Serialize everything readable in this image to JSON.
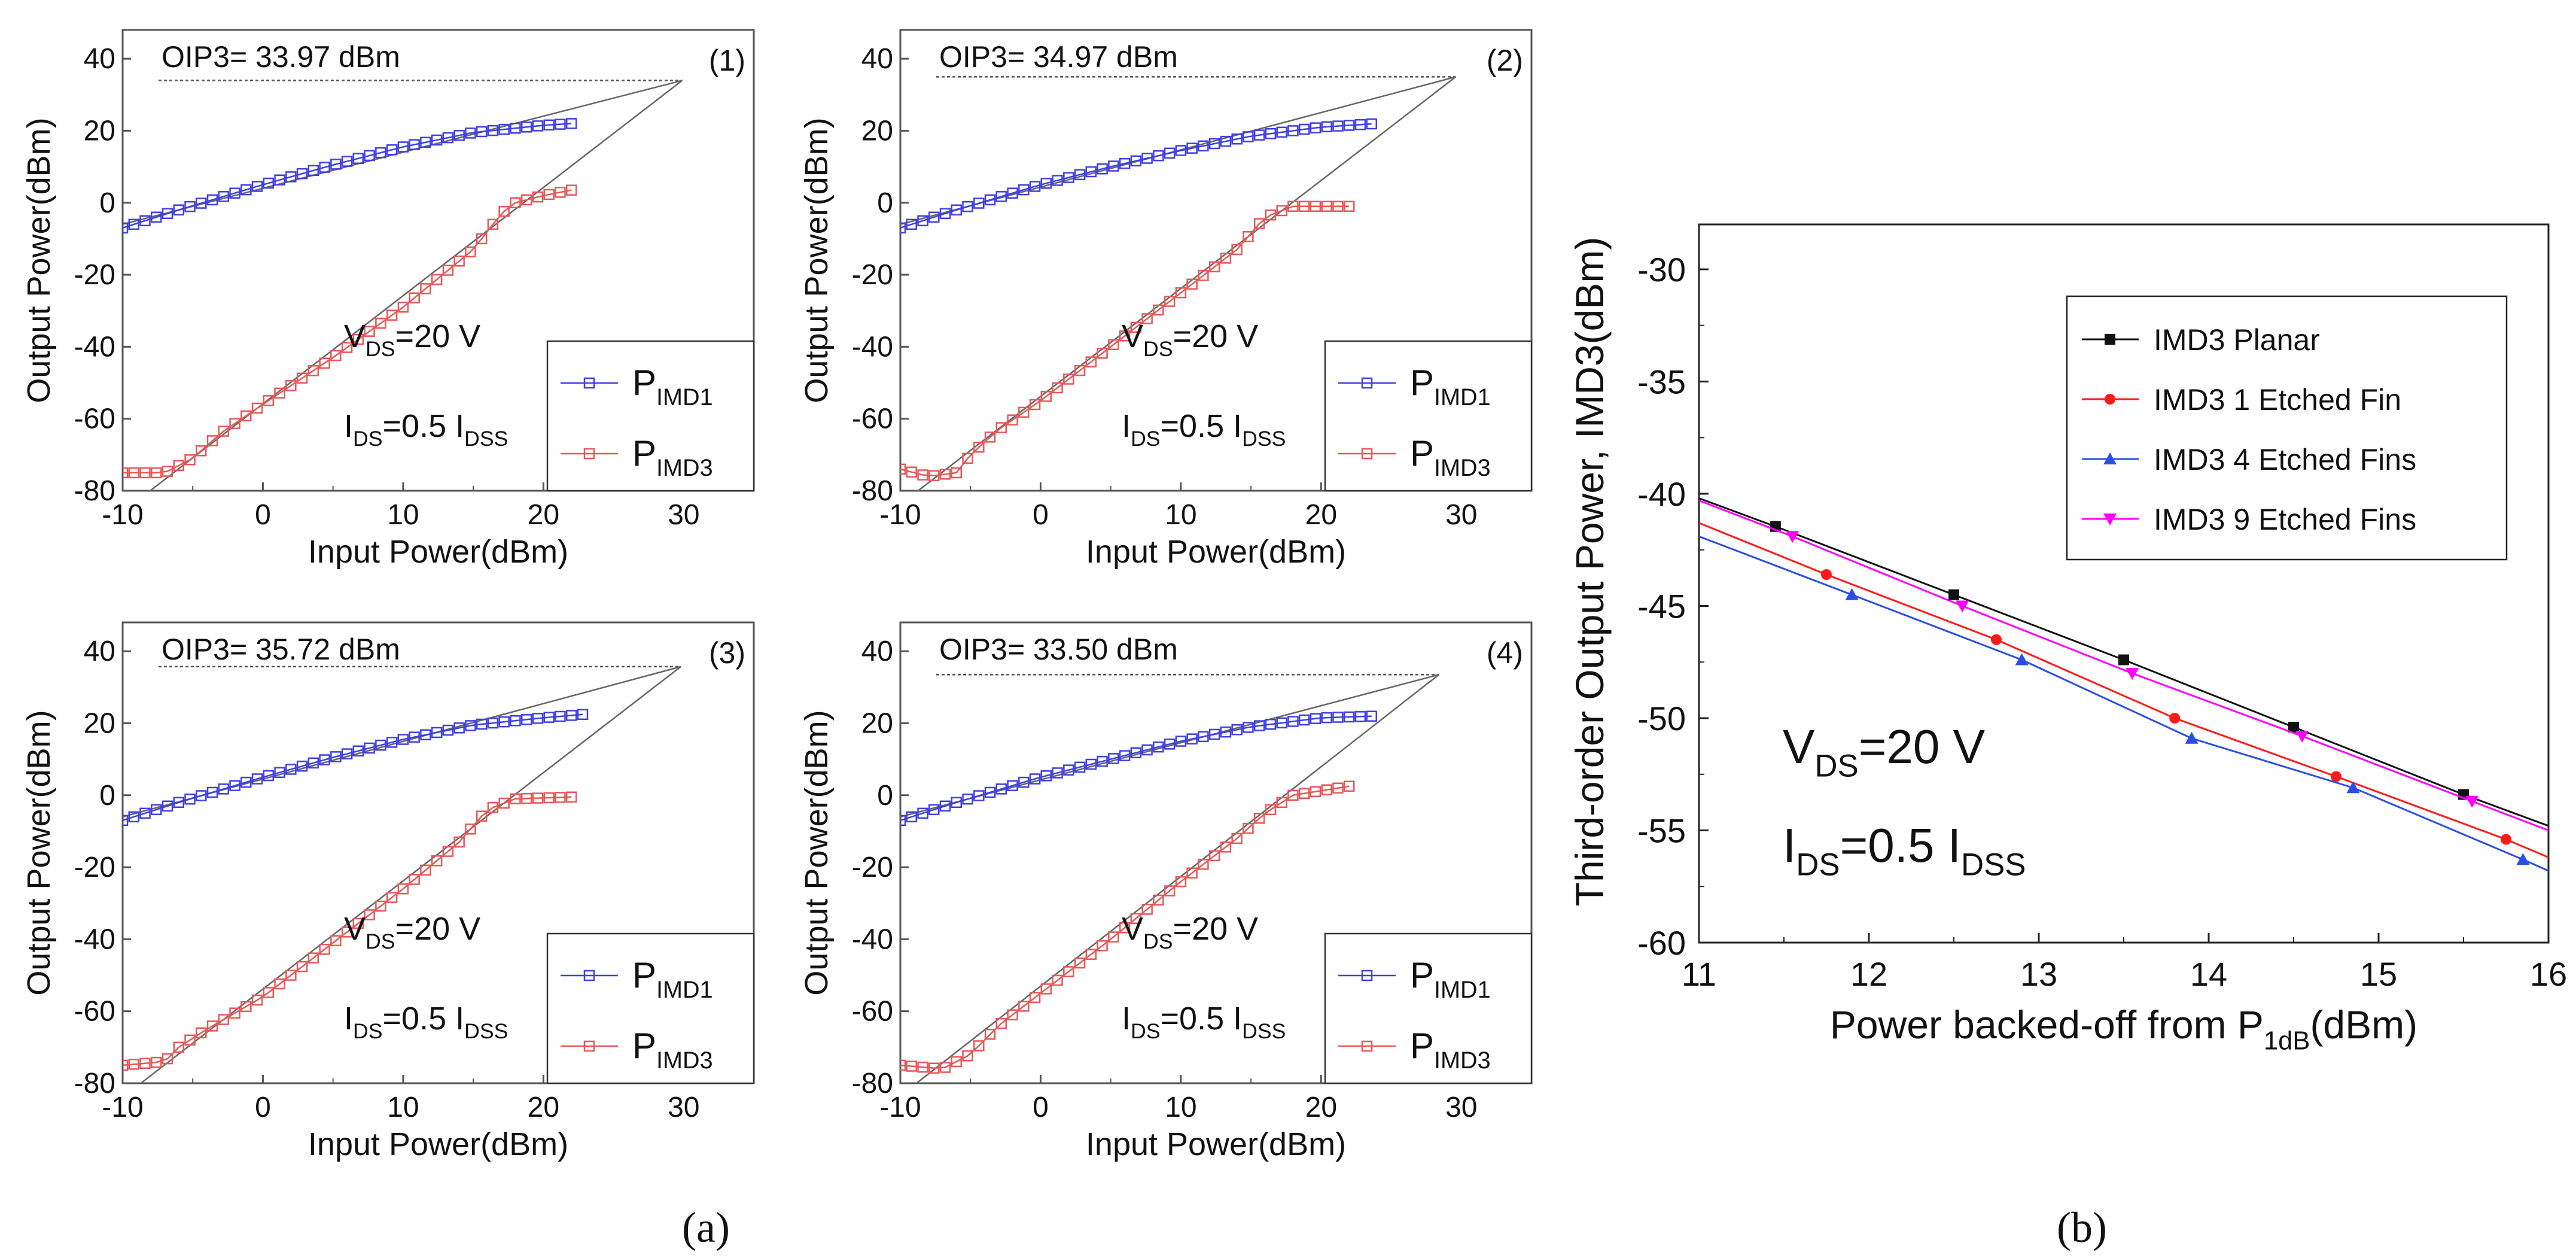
{
  "chart_data": [
    {
      "type": "line",
      "panel": "(1)",
      "oip3_label": "OIP3= 33.97 dBm",
      "oip3": 33.97,
      "xlabel": "Input Power(dBm)",
      "ylabel": "Output Power(dBm)",
      "xlim": [
        -10,
        35
      ],
      "ylim": [
        -80,
        48
      ],
      "xticks": [
        "-10",
        "0",
        "10",
        "20",
        "30"
      ],
      "yticks": [
        "-80",
        "-60",
        "-40",
        "-20",
        "0",
        "20",
        "40"
      ],
      "bias": {
        "vds": "V",
        "vds_sub": "DS",
        "vds_val": "=20 V",
        "ids": "I",
        "ids_sub": "DS",
        "ids_mid": "=0.5 I",
        "ids_sub2": "DSS"
      },
      "legend": [
        {
          "name": "P",
          "sub": "IMD1",
          "color": "#3f3fe6"
        },
        {
          "name": "P",
          "sub": "IMD3",
          "color": "#e85757"
        }
      ],
      "imd1": {
        "x0": -10,
        "x1": 22,
        "step": 0.8,
        "pts": [
          [
            -10,
            -7
          ],
          [
            -6,
            -2
          ],
          [
            0,
            5
          ],
          [
            5,
            10.5
          ],
          [
            10,
            15.5
          ],
          [
            15,
            19.5
          ],
          [
            20,
            21.5
          ],
          [
            22,
            22
          ]
        ]
      },
      "imd3": {
        "x0": -10,
        "x1": 22,
        "step": 0.8,
        "pts": [
          [
            -10,
            -75
          ],
          [
            -7,
            -75
          ],
          [
            -5,
            -71
          ],
          [
            -3,
            -64
          ],
          [
            0,
            -56
          ],
          [
            5,
            -43
          ],
          [
            10,
            -29
          ],
          [
            15,
            -13
          ],
          [
            17,
            -3
          ],
          [
            18,
            0
          ],
          [
            20,
            2
          ],
          [
            22,
            3.5
          ]
        ]
      },
      "fund_line": [
        [
          -10,
          -6
        ],
        [
          29.9,
          33.97
        ]
      ],
      "im3_line": [
        [
          -10,
          -85.9
        ],
        [
          29.9,
          33.97
        ]
      ]
    },
    {
      "type": "line",
      "panel": "(2)",
      "oip3_label": "OIP3= 34.97 dBm",
      "oip3": 34.97,
      "xlabel": "Input Power(dBm)",
      "ylabel": "Output Power(dBm)",
      "xlim": [
        -10,
        35
      ],
      "ylim": [
        -80,
        48
      ],
      "xticks": [
        "-10",
        "0",
        "10",
        "20",
        "30"
      ],
      "yticks": [
        "-80",
        "-60",
        "-40",
        "-20",
        "0",
        "20",
        "40"
      ],
      "bias": {
        "vds": "V",
        "vds_sub": "DS",
        "vds_val": "=20 V",
        "ids": "I",
        "ids_sub": "DS",
        "ids_mid": "=0.5 I",
        "ids_sub2": "DSS"
      },
      "legend": [
        {
          "name": "P",
          "sub": "IMD1",
          "color": "#3f3fe6"
        },
        {
          "name": "P",
          "sub": "IMD3",
          "color": "#e85757"
        }
      ],
      "imd1": {
        "x0": -10,
        "x1": 24,
        "step": 0.8,
        "pts": [
          [
            -10,
            -7
          ],
          [
            -6,
            -2
          ],
          [
            0,
            5
          ],
          [
            5,
            10
          ],
          [
            10,
            14.5
          ],
          [
            15,
            18.5
          ],
          [
            20,
            21
          ],
          [
            24,
            22
          ]
        ]
      },
      "imd3": {
        "x0": -10,
        "x1": 22,
        "step": 0.8,
        "pts": [
          [
            -10,
            -74
          ],
          [
            -8,
            -76
          ],
          [
            -6,
            -75
          ],
          [
            -5,
            -70
          ],
          [
            -3,
            -63
          ],
          [
            0,
            -55
          ],
          [
            5,
            -40
          ],
          [
            10,
            -25
          ],
          [
            14,
            -13
          ],
          [
            16,
            -4
          ],
          [
            18,
            -1
          ],
          [
            22,
            -1
          ]
        ]
      },
      "fund_line": [
        [
          -10,
          -6
        ],
        [
          29.6,
          34.97
        ]
      ],
      "im3_line": [
        [
          -10,
          -83.8
        ],
        [
          29.6,
          34.97
        ]
      ]
    },
    {
      "type": "line",
      "panel": "(3)",
      "oip3_label": "OIP3= 35.72 dBm",
      "oip3": 35.72,
      "xlabel": "Input Power(dBm)",
      "ylabel": "Output Power(dBm)",
      "xlim": [
        -10,
        35
      ],
      "ylim": [
        -80,
        48
      ],
      "xticks": [
        "-10",
        "0",
        "10",
        "20",
        "30"
      ],
      "yticks": [
        "-80",
        "-60",
        "-40",
        "-20",
        "0",
        "20",
        "40"
      ],
      "bias": {
        "vds": "V",
        "vds_sub": "DS",
        "vds_val": "=20 V",
        "ids": "I",
        "ids_sub": "DS",
        "ids_mid": "=0.5 I",
        "ids_sub2": "DSS"
      },
      "legend": [
        {
          "name": "P",
          "sub": "IMD1",
          "color": "#3f3fe6"
        },
        {
          "name": "P",
          "sub": "IMD3",
          "color": "#e85757"
        }
      ],
      "imd1": {
        "x0": -10,
        "x1": 23,
        "step": 0.8,
        "pts": [
          [
            -10,
            -7
          ],
          [
            -6,
            -2
          ],
          [
            0,
            5
          ],
          [
            5,
            10.5
          ],
          [
            10,
            15.5
          ],
          [
            15,
            19.5
          ],
          [
            20,
            21.5
          ],
          [
            23,
            22.5
          ]
        ]
      },
      "imd3": {
        "x0": -10,
        "x1": 22,
        "step": 0.8,
        "pts": [
          [
            -10,
            -75
          ],
          [
            -7,
            -74
          ],
          [
            -6,
            -70
          ],
          [
            -4,
            -65
          ],
          [
            0,
            -56
          ],
          [
            5,
            -41
          ],
          [
            10,
            -26
          ],
          [
            14,
            -13
          ],
          [
            16,
            -4
          ],
          [
            18,
            -1
          ],
          [
            22,
            -0.5
          ]
        ]
      },
      "fund_line": [
        [
          -10,
          -6
        ],
        [
          29.8,
          35.72
        ]
      ],
      "im3_line": [
        [
          -10,
          -83.9
        ],
        [
          29.8,
          35.72
        ]
      ]
    },
    {
      "type": "line",
      "panel": "(4)",
      "oip3_label": "OIP3= 33.50 dBm",
      "oip3": 33.5,
      "xlabel": "Input Power(dBm)",
      "ylabel": "Output Power(dBm)",
      "xlim": [
        -10,
        35
      ],
      "ylim": [
        -80,
        48
      ],
      "xticks": [
        "-10",
        "0",
        "10",
        "20",
        "30"
      ],
      "yticks": [
        "-80",
        "-60",
        "-40",
        "-20",
        "0",
        "20",
        "40"
      ],
      "bias": {
        "vds": "V",
        "vds_sub": "DS",
        "vds_val": "=20 V",
        "ids": "I",
        "ids_sub": "DS",
        "ids_mid": "=0.5 I",
        "ids_sub2": "DSS"
      },
      "legend": [
        {
          "name": "P",
          "sub": "IMD1",
          "color": "#3f3fe6"
        },
        {
          "name": "P",
          "sub": "IMD3",
          "color": "#e85757"
        }
      ],
      "imd1": {
        "x0": -10,
        "x1": 24,
        "step": 0.8,
        "pts": [
          [
            -10,
            -7
          ],
          [
            -6,
            -2
          ],
          [
            0,
            5
          ],
          [
            5,
            10
          ],
          [
            10,
            15
          ],
          [
            15,
            19
          ],
          [
            20,
            21.5
          ],
          [
            24,
            22
          ]
        ]
      },
      "imd3": {
        "x0": -10,
        "x1": 22,
        "step": 0.8,
        "pts": [
          [
            -10,
            -75
          ],
          [
            -7,
            -76
          ],
          [
            -5,
            -72
          ],
          [
            -3,
            -64
          ],
          [
            0,
            -55
          ],
          [
            5,
            -40
          ],
          [
            10,
            -24
          ],
          [
            14,
            -12
          ],
          [
            16,
            -5
          ],
          [
            18,
            0
          ],
          [
            22,
            2.5
          ]
        ]
      },
      "fund_line": [
        [
          -10,
          -6
        ],
        [
          28.4,
          33.5
        ]
      ],
      "im3_line": [
        [
          -10,
          -83.5
        ],
        [
          28.4,
          33.5
        ]
      ]
    },
    {
      "type": "line",
      "panel": "(b)",
      "xlabel": "Power backed-off from P",
      "xlabel_sub": "1dB",
      "xlabel_unit": "(dBm)",
      "ylabel": "Third-order Output Power, IMD3(dBm)",
      "xlim": [
        11,
        16
      ],
      "ylim": [
        -60,
        -28
      ],
      "xticks": [
        "11",
        "12",
        "13",
        "14",
        "15",
        "16"
      ],
      "yticks": [
        "-60",
        "-55",
        "-50",
        "-45",
        "-40",
        "-35",
        "-30"
      ],
      "bias": {
        "vds": "V",
        "vds_sub": "DS",
        "vds_val": "=20 V",
        "ids": "I",
        "ids_sub": "DS",
        "ids_mid": "=0.5 I",
        "ids_sub2": "DSS"
      },
      "series": [
        {
          "name": "IMD3 Planar",
          "color": "#111111",
          "marker": "square",
          "x": [
            11,
            11.5,
            12.5,
            13.5,
            14.5,
            15.5,
            16
          ],
          "y": [
            -40.2,
            -41.6,
            -44.5,
            -47.4,
            -50.4,
            -53.4,
            -54.8
          ],
          "mx": [
            11.45,
            12.5,
            13.5,
            14.5,
            15.5
          ]
        },
        {
          "name": "IMD3 1 Etched Fin",
          "color": "#ff1a1a",
          "marker": "circle",
          "x": [
            11,
            11.75,
            12.75,
            13.8,
            14.75,
            15.75,
            16
          ],
          "y": [
            -41.3,
            -43.6,
            -46.5,
            -50.0,
            -52.6,
            -55.4,
            -56.2
          ],
          "mx": [
            11.75,
            12.75,
            13.8,
            14.75,
            15.75
          ]
        },
        {
          "name": "IMD3 4 Etched Fins",
          "color": "#2b4fe6",
          "marker": "triangle",
          "x": [
            11,
            11.9,
            12.9,
            13.9,
            14.85,
            15.85,
            16
          ],
          "y": [
            -41.9,
            -44.5,
            -47.4,
            -50.9,
            -53.1,
            -56.3,
            -56.8
          ],
          "mx": [
            11.9,
            12.9,
            13.9,
            14.85,
            15.85
          ]
        },
        {
          "name": "IMD3 9 Etched Fins",
          "color": "#ff00ff",
          "marker": "triangle-down",
          "x": [
            11,
            11.55,
            12.55,
            13.55,
            14.55,
            15.55,
            16
          ],
          "y": [
            -40.3,
            -41.9,
            -45.0,
            -48.0,
            -50.8,
            -53.7,
            -55.0
          ],
          "mx": [
            11.55,
            12.55,
            13.55,
            14.55,
            15.55
          ]
        }
      ]
    }
  ],
  "captions": {
    "a": "(a)",
    "b": "(b)"
  }
}
